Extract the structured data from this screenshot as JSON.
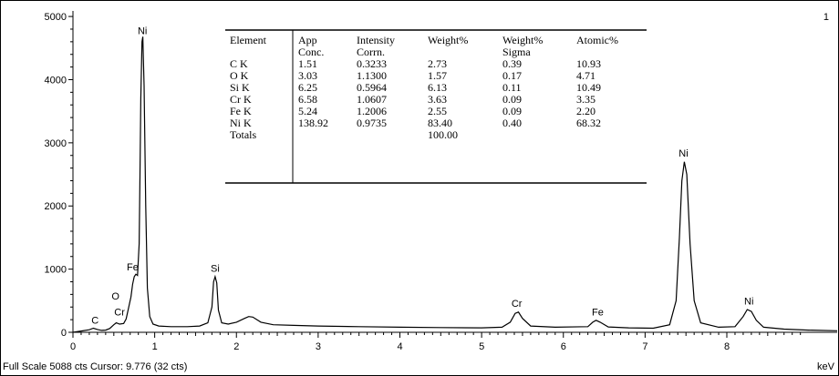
{
  "chart_data": {
    "type": "line",
    "xlabel": "keV",
    "xlim": [
      0,
      9.35
    ],
    "ylim": [
      0,
      5088
    ],
    "xticks": [
      "0",
      "1",
      "2",
      "3",
      "4",
      "5",
      "6",
      "7",
      "8"
    ],
    "yticks": [
      "0",
      "1000",
      "2000",
      "3000",
      "4000",
      "5000"
    ],
    "spectrum_number": "1",
    "line_color": "#000000",
    "series": [
      {
        "values": [
          [
            0,
            0
          ],
          [
            0.1,
            20
          ],
          [
            0.2,
            40
          ],
          [
            0.25,
            65
          ],
          [
            0.3,
            45
          ],
          [
            0.35,
            30
          ],
          [
            0.4,
            35
          ],
          [
            0.45,
            60
          ],
          [
            0.5,
            120
          ],
          [
            0.53,
            150
          ],
          [
            0.57,
            130
          ],
          [
            0.62,
            140
          ],
          [
            0.65,
            210
          ],
          [
            0.68,
            380
          ],
          [
            0.71,
            560
          ],
          [
            0.73,
            760
          ],
          [
            0.75,
            880
          ],
          [
            0.77,
            920
          ],
          [
            0.79,
            900
          ],
          [
            0.81,
            1400
          ],
          [
            0.82,
            2500
          ],
          [
            0.83,
            3700
          ],
          [
            0.845,
            4600
          ],
          [
            0.855,
            4680
          ],
          [
            0.87,
            3900
          ],
          [
            0.89,
            2000
          ],
          [
            0.91,
            700
          ],
          [
            0.94,
            250
          ],
          [
            0.98,
            130
          ],
          [
            1.05,
            100
          ],
          [
            1.2,
            90
          ],
          [
            1.4,
            90
          ],
          [
            1.55,
            100
          ],
          [
            1.65,
            150
          ],
          [
            1.7,
            400
          ],
          [
            1.72,
            800
          ],
          [
            1.74,
            880
          ],
          [
            1.76,
            780
          ],
          [
            1.78,
            350
          ],
          [
            1.82,
            150
          ],
          [
            1.9,
            130
          ],
          [
            2.0,
            160
          ],
          [
            2.1,
            220
          ],
          [
            2.15,
            250
          ],
          [
            2.2,
            240
          ],
          [
            2.3,
            160
          ],
          [
            2.45,
            120
          ],
          [
            2.7,
            110
          ],
          [
            3.0,
            100
          ],
          [
            3.5,
            90
          ],
          [
            4.0,
            80
          ],
          [
            4.5,
            75
          ],
          [
            5.0,
            70
          ],
          [
            5.25,
            80
          ],
          [
            5.35,
            160
          ],
          [
            5.41,
            300
          ],
          [
            5.45,
            320
          ],
          [
            5.5,
            220
          ],
          [
            5.6,
            100
          ],
          [
            5.9,
            80
          ],
          [
            6.3,
            90
          ],
          [
            6.36,
            160
          ],
          [
            6.4,
            190
          ],
          [
            6.45,
            160
          ],
          [
            6.55,
            85
          ],
          [
            6.8,
            70
          ],
          [
            7.1,
            65
          ],
          [
            7.3,
            120
          ],
          [
            7.38,
            500
          ],
          [
            7.42,
            1500
          ],
          [
            7.45,
            2400
          ],
          [
            7.48,
            2700
          ],
          [
            7.51,
            2500
          ],
          [
            7.55,
            1400
          ],
          [
            7.6,
            500
          ],
          [
            7.68,
            150
          ],
          [
            7.9,
            80
          ],
          [
            8.1,
            90
          ],
          [
            8.2,
            250
          ],
          [
            8.25,
            360
          ],
          [
            8.3,
            330
          ],
          [
            8.36,
            190
          ],
          [
            8.45,
            80
          ],
          [
            8.7,
            50
          ],
          [
            9.0,
            35
          ],
          [
            9.35,
            25
          ]
        ]
      }
    ],
    "peak_labels": [
      {
        "text": "Ni",
        "x": 0.85,
        "y": 4720
      },
      {
        "text": "C",
        "x": 0.27,
        "y": 140
      },
      {
        "text": "O",
        "x": 0.52,
        "y": 520
      },
      {
        "text": "Cr",
        "x": 0.57,
        "y": 270
      },
      {
        "text": "Fe",
        "x": 0.73,
        "y": 980
      },
      {
        "text": "Si",
        "x": 1.74,
        "y": 960
      },
      {
        "text": "Cr",
        "x": 5.43,
        "y": 400
      },
      {
        "text": "Fe",
        "x": 6.42,
        "y": 270
      },
      {
        "text": "Ni",
        "x": 7.47,
        "y": 2780
      },
      {
        "text": "Ni",
        "x": 8.27,
        "y": 440
      }
    ],
    "table": {
      "headers": [
        [
          "Element",
          ""
        ],
        [
          "App",
          "Conc."
        ],
        [
          "Intensity",
          "Corrn."
        ],
        [
          "Weight%",
          ""
        ],
        [
          "Weight%",
          "Sigma"
        ],
        [
          "Atomic%",
          ""
        ]
      ],
      "rows": [
        [
          "C K",
          "1.51",
          "0.3233",
          "2.73",
          "0.39",
          "10.93"
        ],
        [
          "O K",
          "3.03",
          "1.1300",
          "1.57",
          "0.17",
          "4.71"
        ],
        [
          "Si K",
          "6.25",
          "0.5964",
          "6.13",
          "0.11",
          "10.49"
        ],
        [
          "Cr K",
          "6.58",
          "1.0607",
          "3.63",
          "0.09",
          "3.35"
        ],
        [
          "Fe K",
          "5.24",
          "1.2006",
          "2.55",
          "0.09",
          "2.20"
        ],
        [
          "Ni K",
          "138.92",
          "0.9735",
          "83.40",
          "0.40",
          "68.32"
        ],
        [
          "Totals",
          "",
          "",
          "100.00",
          "",
          ""
        ]
      ]
    }
  },
  "status": {
    "text": "Full Scale 5088 cts Cursor: 9.776  (32 cts)",
    "unit": "keV"
  }
}
